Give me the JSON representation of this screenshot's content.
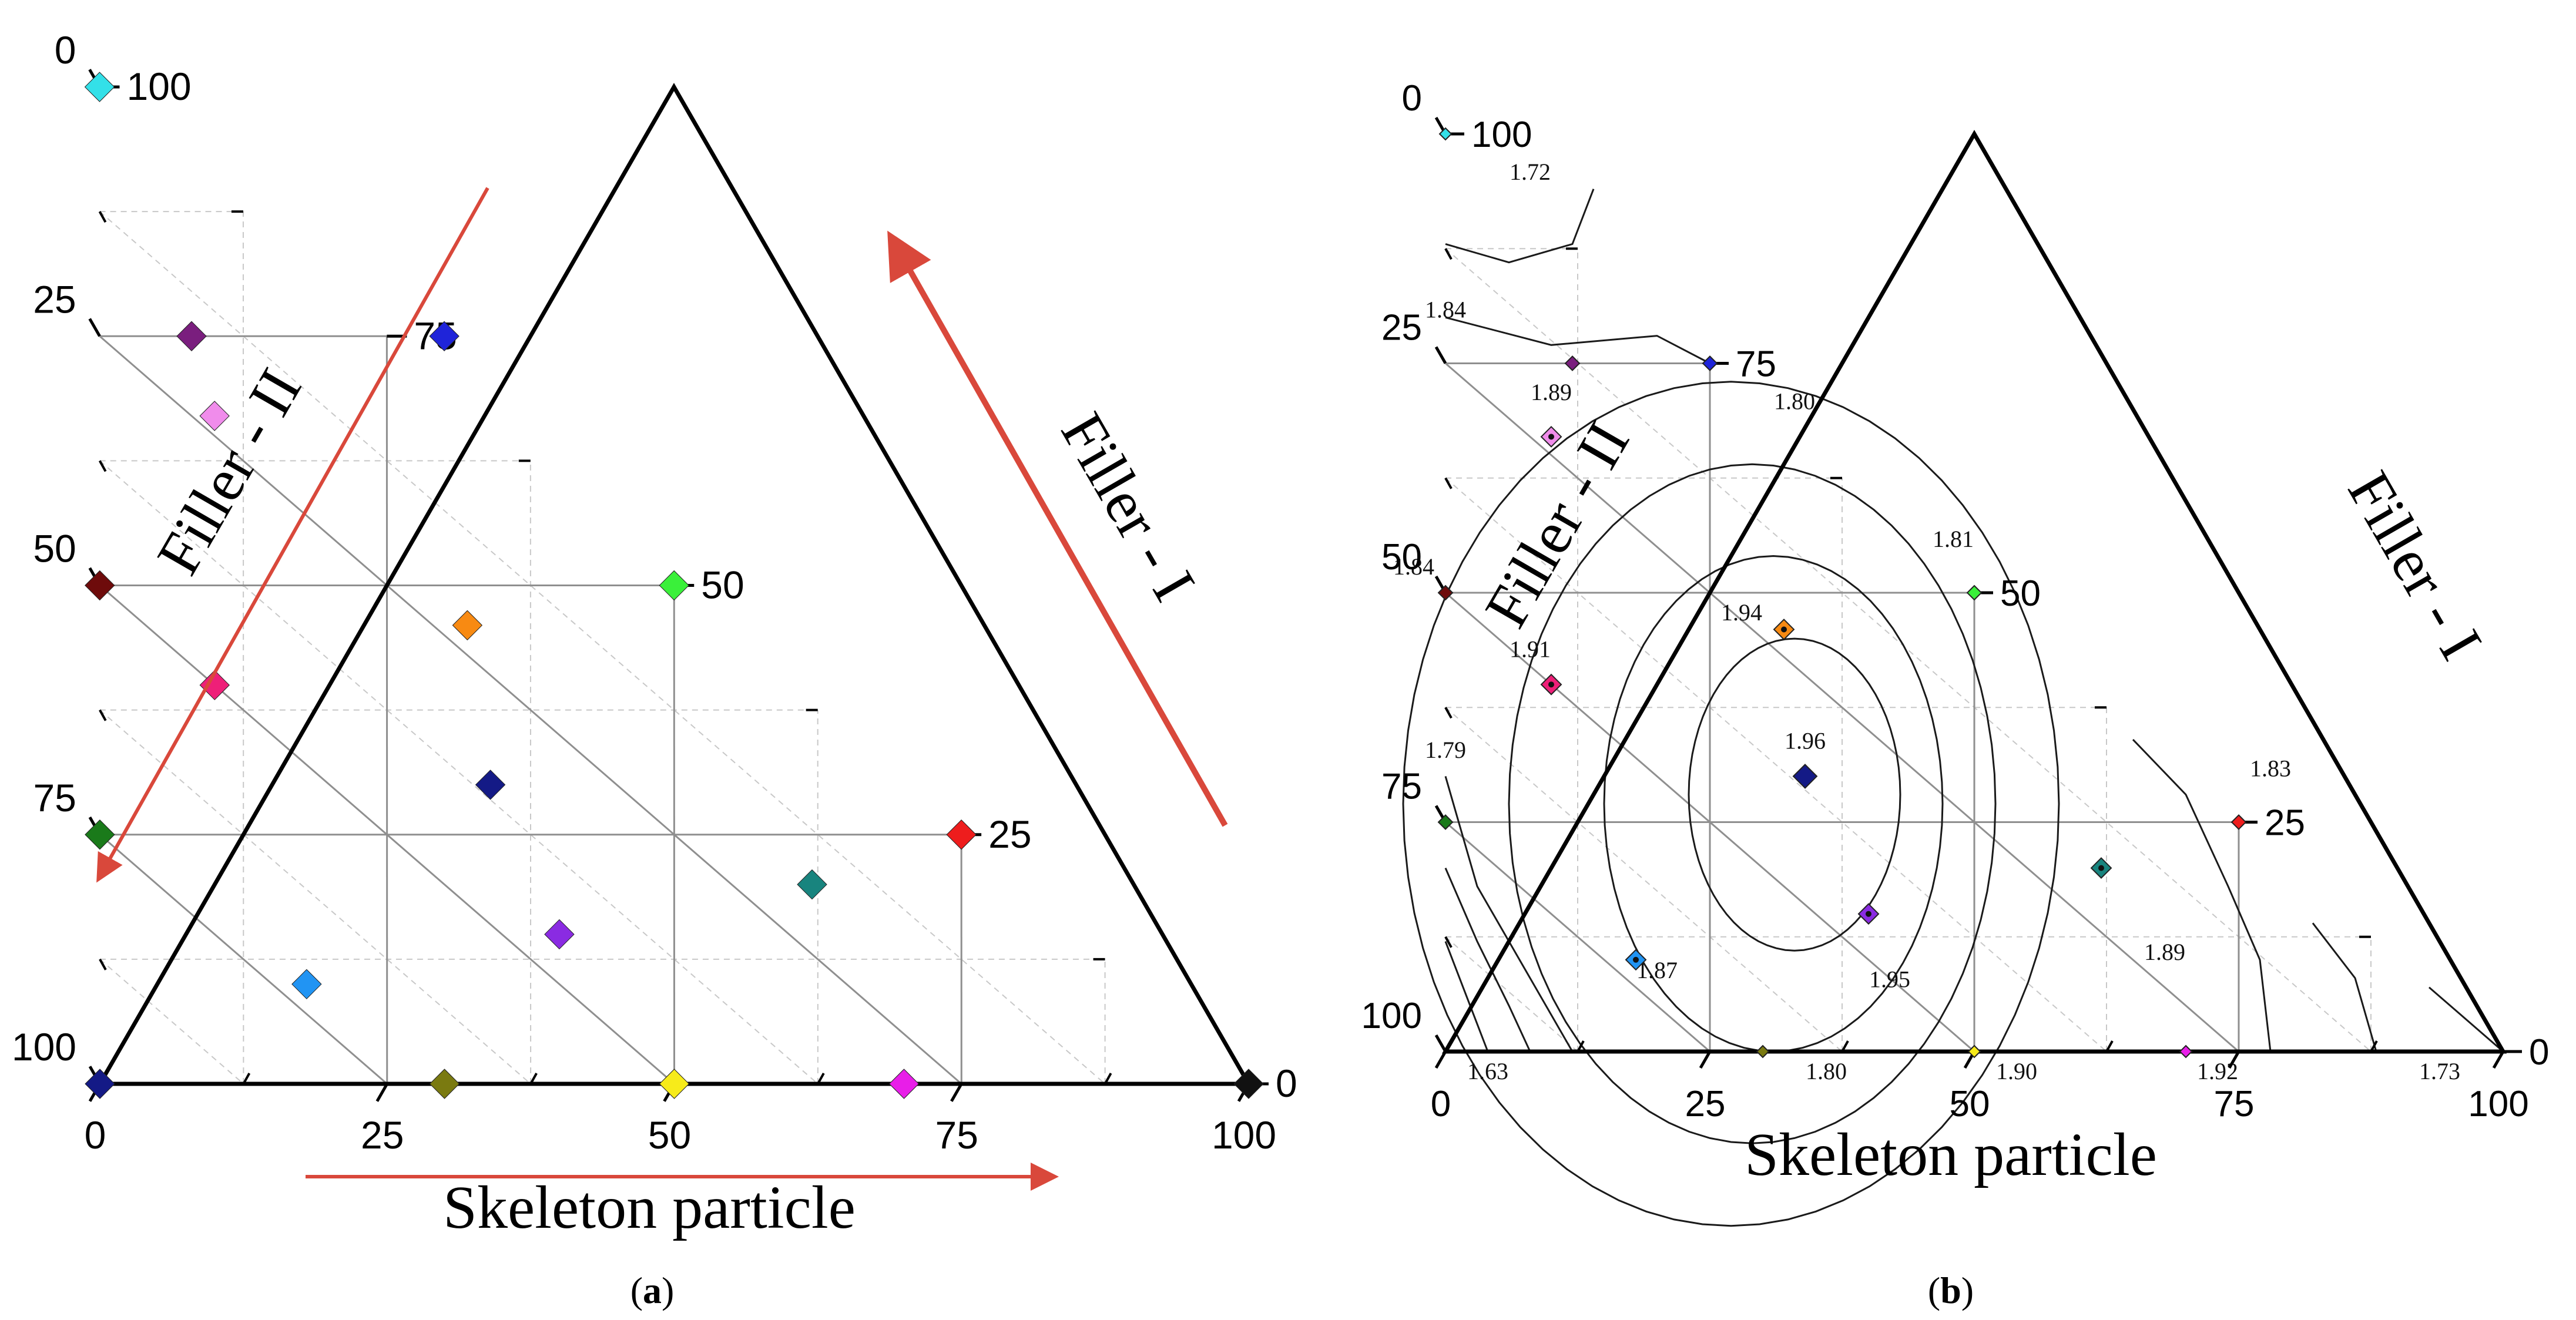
{
  "chart_data": [
    {
      "panel": "a",
      "type": "scatter",
      "subtype": "ternary",
      "panel_label_open": "(",
      "panel_label_letter": "a",
      "panel_label_close": ")",
      "axes": {
        "bottom": {
          "label": "Skeleton particle",
          "ticks": [
            "0",
            "25",
            "50",
            "75",
            "100"
          ]
        },
        "left": {
          "label": "Filler - II",
          "ticks": [
            "0",
            "25",
            "50",
            "75",
            "100"
          ]
        },
        "right": {
          "label": "Filler - I",
          "ticks": [
            "0",
            "25",
            "50",
            "75",
            "100"
          ]
        }
      },
      "tick_values": [
        0,
        25,
        50,
        75,
        100
      ],
      "grid": true,
      "arrows": [
        "Skeleton particle increasing",
        "Filler - II increasing",
        "Filler - I increasing"
      ],
      "points": [
        {
          "skeleton": 0,
          "filler_I": 100,
          "color": "#33E0E8"
        },
        {
          "skeleton": 8,
          "filler_I": 75,
          "color": "#7A1E7E"
        },
        {
          "skeleton": 30,
          "filler_I": 75,
          "color": "#1F24D9"
        },
        {
          "skeleton": 10,
          "filler_I": 67,
          "color": "#F08CEB"
        },
        {
          "skeleton": 0,
          "filler_I": 50,
          "color": "#6E0B0B"
        },
        {
          "skeleton": 50,
          "filler_I": 50,
          "color": "#3AF03A"
        },
        {
          "skeleton": 32,
          "filler_I": 46,
          "color": "#F88A12"
        },
        {
          "skeleton": 10,
          "filler_I": 40,
          "color": "#EE1F78"
        },
        {
          "skeleton": 34,
          "filler_I": 30,
          "color": "#141A86"
        },
        {
          "skeleton": 0,
          "filler_I": 25,
          "color": "#1A7A1A"
        },
        {
          "skeleton": 75,
          "filler_I": 25,
          "color": "#EE1D1D"
        },
        {
          "skeleton": 18,
          "filler_I": 10,
          "color": "#2194F3"
        },
        {
          "skeleton": 40,
          "filler_I": 15,
          "color": "#8A2BE2"
        },
        {
          "skeleton": 62,
          "filler_I": 20,
          "color": "#18847E"
        },
        {
          "skeleton": 0,
          "filler_I": 0,
          "color": "#141A86"
        },
        {
          "skeleton": 30,
          "filler_I": 0,
          "color": "#7A7A10"
        },
        {
          "skeleton": 50,
          "filler_I": 0,
          "color": "#F7EB1A"
        },
        {
          "skeleton": 70,
          "filler_I": 0,
          "color": "#E81EE8"
        },
        {
          "skeleton": 100,
          "filler_I": 0,
          "color": "#111111"
        }
      ]
    },
    {
      "panel": "b",
      "type": "contour",
      "subtype": "ternary",
      "panel_label_open": "(",
      "panel_label_letter": "b",
      "panel_label_close": ")",
      "axes": {
        "bottom": {
          "label": "Skeleton particle",
          "ticks": [
            "0",
            "25",
            "50",
            "75",
            "100"
          ]
        },
        "left": {
          "label": "Filler - II",
          "ticks": [
            "0",
            "25",
            "50",
            "75",
            "100"
          ]
        },
        "right": {
          "label": "Filler - I",
          "ticks": [
            "0",
            "25",
            "50",
            "75",
            "100"
          ]
        }
      },
      "tick_values": [
        0,
        25,
        50,
        75,
        100
      ],
      "grid": true,
      "contour_levels": [
        1.63,
        1.72,
        1.73,
        1.79,
        1.8,
        1.81,
        1.83,
        1.84,
        1.87,
        1.89,
        1.9,
        1.91,
        1.92,
        1.94,
        1.95,
        1.96
      ],
      "annotations": [
        {
          "text": "1.72",
          "skeleton": 8,
          "filler_I": 95
        },
        {
          "text": "1.84",
          "skeleton": 0,
          "filler_I": 80
        },
        {
          "text": "1.80",
          "skeleton": 33,
          "filler_I": 70
        },
        {
          "text": "1.89",
          "skeleton": 10,
          "filler_I": 71
        },
        {
          "text": "1.81",
          "skeleton": 48,
          "filler_I": 55
        },
        {
          "text": "1.84",
          "skeleton": -3,
          "filler_I": 52
        },
        {
          "text": "1.94",
          "skeleton": 28,
          "filler_I": 47
        },
        {
          "text": "1.91",
          "skeleton": 8,
          "filler_I": 43
        },
        {
          "text": "1.79",
          "skeleton": 0,
          "filler_I": 32
        },
        {
          "text": "1.96",
          "skeleton": 34,
          "filler_I": 33
        },
        {
          "text": "1.83",
          "skeleton": 78,
          "filler_I": 30
        },
        {
          "text": "1.87",
          "skeleton": 20,
          "filler_I": 8
        },
        {
          "text": "1.89",
          "skeleton": 68,
          "filler_I": 10
        },
        {
          "text": "1.95",
          "skeleton": 42,
          "filler_I": 7
        },
        {
          "text": "1.63",
          "skeleton": 4,
          "filler_I": -3
        },
        {
          "text": "1.80",
          "skeleton": 36,
          "filler_I": -3
        },
        {
          "text": "1.90",
          "skeleton": 54,
          "filler_I": -3
        },
        {
          "text": "1.92",
          "skeleton": 73,
          "filler_I": -3
        },
        {
          "text": "1.73",
          "skeleton": 94,
          "filler_I": -3
        }
      ],
      "points": [
        {
          "skeleton": 0,
          "filler_I": 100,
          "color": "#33E0E8",
          "marker": "tiny"
        },
        {
          "skeleton": 12,
          "filler_I": 75,
          "color": "#7A1E7E",
          "marker": "small"
        },
        {
          "skeleton": 25,
          "filler_I": 75,
          "color": "#1F24D9",
          "marker": "small"
        },
        {
          "skeleton": 10,
          "filler_I": 67,
          "color": "#F08CEB",
          "marker": "dot"
        },
        {
          "skeleton": 0,
          "filler_I": 50,
          "color": "#6E0B0B",
          "marker": "small"
        },
        {
          "skeleton": 50,
          "filler_I": 50,
          "color": "#3AF03A",
          "marker": "small"
        },
        {
          "skeleton": 32,
          "filler_I": 46,
          "color": "#F88A12",
          "marker": "dot"
        },
        {
          "skeleton": 10,
          "filler_I": 40,
          "color": "#EE1F78",
          "marker": "dot"
        },
        {
          "skeleton": 34,
          "filler_I": 30,
          "color": "#141A86",
          "marker": "big"
        },
        {
          "skeleton": 0,
          "filler_I": 25,
          "color": "#1A7A1A",
          "marker": "small"
        },
        {
          "skeleton": 75,
          "filler_I": 25,
          "color": "#EE1D1D",
          "marker": "small"
        },
        {
          "skeleton": 18,
          "filler_I": 10,
          "color": "#2194F3",
          "marker": "dot"
        },
        {
          "skeleton": 40,
          "filler_I": 15,
          "color": "#8A2BE2",
          "marker": "dot"
        },
        {
          "skeleton": 62,
          "filler_I": 20,
          "color": "#18847E",
          "marker": "dot"
        },
        {
          "skeleton": 30,
          "filler_I": 0,
          "color": "#7A7A10",
          "marker": "tiny"
        },
        {
          "skeleton": 50,
          "filler_I": 0,
          "color": "#F7EB1A",
          "marker": "tiny"
        },
        {
          "skeleton": 70,
          "filler_I": 0,
          "color": "#E81EE8",
          "marker": "tiny"
        }
      ],
      "top_tick_label": "0",
      "top_value_label": "100"
    }
  ]
}
